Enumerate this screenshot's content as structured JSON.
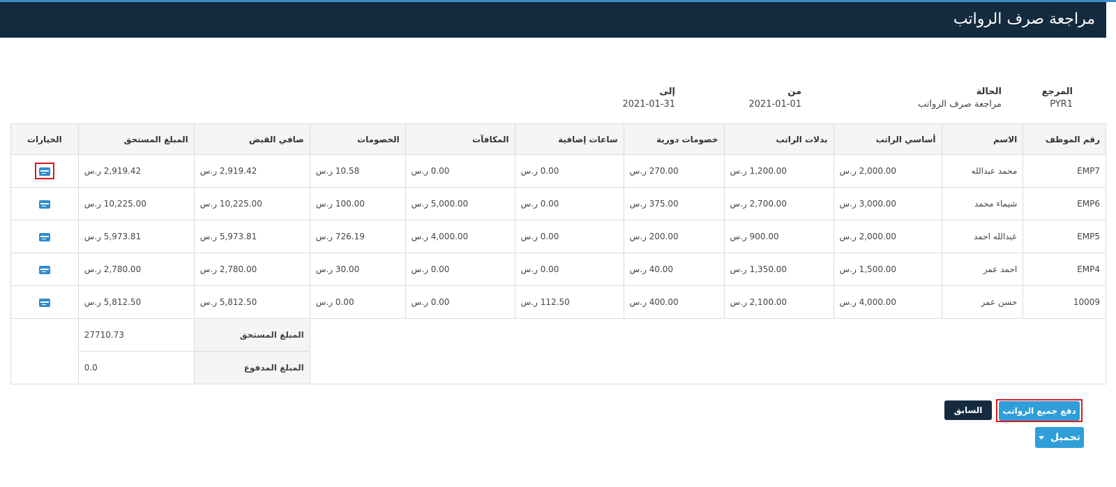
{
  "header": {
    "title": "مراجعة صرف الرواتب"
  },
  "info": {
    "reference": {
      "label": "المرجع",
      "value": "PYR1"
    },
    "status": {
      "label": "الحالة",
      "value": "مراجعة صرف الرواتب"
    },
    "from": {
      "label": "من",
      "value": "2021-01-01"
    },
    "to": {
      "label": "إلى",
      "value": "2021-01-31"
    }
  },
  "table": {
    "headers": {
      "emp_no": "رقم الموظف",
      "name": "الاسم",
      "basic": "أساسي الراتب",
      "allowances": "بدلات الراتب",
      "periodic": "خصومات دورية",
      "overtime": "ساعات إضافية",
      "bonuses": "المكافآت",
      "deductions": "الخصومات",
      "net": "صافي القبض",
      "due": "المبلغ المستحق",
      "options": "الخيارات"
    },
    "rows": [
      {
        "emp_no": "EMP7",
        "name": "محمد عبدالله",
        "basic": "2,000.00 ر.س",
        "allowances": "1,200.00 ر.س",
        "periodic": "270.00 ر.س",
        "overtime": "0.00 ر.س",
        "bonuses": "0.00 ر.س",
        "deductions": "10.58 ر.س",
        "net": "2,919.42 ر.س",
        "due": "2,919.42 ر.س"
      },
      {
        "emp_no": "EMP6",
        "name": "شيماء محمد",
        "basic": "3,000.00 ر.س",
        "allowances": "2,700.00 ر.س",
        "periodic": "375.00 ر.س",
        "overtime": "0.00 ر.س",
        "bonuses": "5,000.00 ر.س",
        "deductions": "100.00 ر.س",
        "net": "10,225.00 ر.س",
        "due": "10,225.00 ر.س"
      },
      {
        "emp_no": "EMP5",
        "name": "عبدالله احمد",
        "basic": "2,000.00 ر.س",
        "allowances": "900.00 ر.س",
        "periodic": "200.00 ر.س",
        "overtime": "0.00 ر.س",
        "bonuses": "4,000.00 ر.س",
        "deductions": "726.19 ر.س",
        "net": "5,973.81 ر.س",
        "due": "5,973.81 ر.س"
      },
      {
        "emp_no": "EMP4",
        "name": "احمد عمر",
        "basic": "1,500.00 ر.س",
        "allowances": "1,350.00 ر.س",
        "periodic": "40.00 ر.س",
        "overtime": "0.00 ر.س",
        "bonuses": "0.00 ر.س",
        "deductions": "30.00 ر.س",
        "net": "2,780.00 ر.س",
        "due": "2,780.00 ر.س"
      },
      {
        "emp_no": "10009",
        "name": "حسن عمر",
        "basic": "4,000.00 ر.س",
        "allowances": "2,100.00 ر.س",
        "periodic": "400.00 ر.س",
        "overtime": "112.50 ر.س",
        "bonuses": "0.00 ر.س",
        "deductions": "0.00 ر.س",
        "net": "5,812.50 ر.س",
        "due": "5,812.50 ر.س"
      }
    ],
    "totals": {
      "due_label": "المبلغ المستحق",
      "due_value": "27710.73",
      "paid_label": "المبلغ المدفوع",
      "paid_value": "0.0"
    },
    "option_icon": "card-icon",
    "accent_color": "#2f8bd0"
  },
  "buttons": {
    "pay_all": "دفع جميع الرواتب",
    "previous": "السابق",
    "download": "تحميل"
  }
}
